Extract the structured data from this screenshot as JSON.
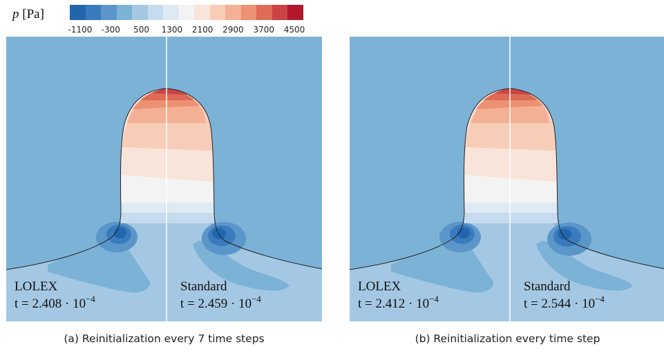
{
  "legend": {
    "title": "p [Pa]",
    "variable": "p",
    "unit": "[Pa]",
    "ticks": [
      "-1100",
      "-300",
      "500",
      "1300",
      "2100",
      "2900",
      "3700",
      "4500"
    ],
    "colors": [
      "#2166ac",
      "#3a7bbd",
      "#5a96c9",
      "#7db2d7",
      "#a4c8e3",
      "#c6dbee",
      "#dde9f3",
      "#f3f3f3",
      "#f9e4da",
      "#f8cdb8",
      "#f4b095",
      "#ec9174",
      "#dd6b57",
      "#cc4343",
      "#b2182b"
    ]
  },
  "panels": [
    {
      "left_method": "LOLEX",
      "left_time": "t = 2.408 · 10",
      "left_exp": "−4",
      "right_method": "Standard",
      "right_time": "t = 2.459 · 10",
      "right_exp": "−4",
      "caption": "(a) Reinitialization every 7 time steps"
    },
    {
      "left_method": "LOLEX",
      "left_time": "t = 2.412 · 10",
      "left_exp": "−4",
      "right_method": "Standard",
      "right_time": "t = 2.544 · 10",
      "right_exp": "−4",
      "caption": "(b) Reinitialization every time step"
    }
  ]
}
